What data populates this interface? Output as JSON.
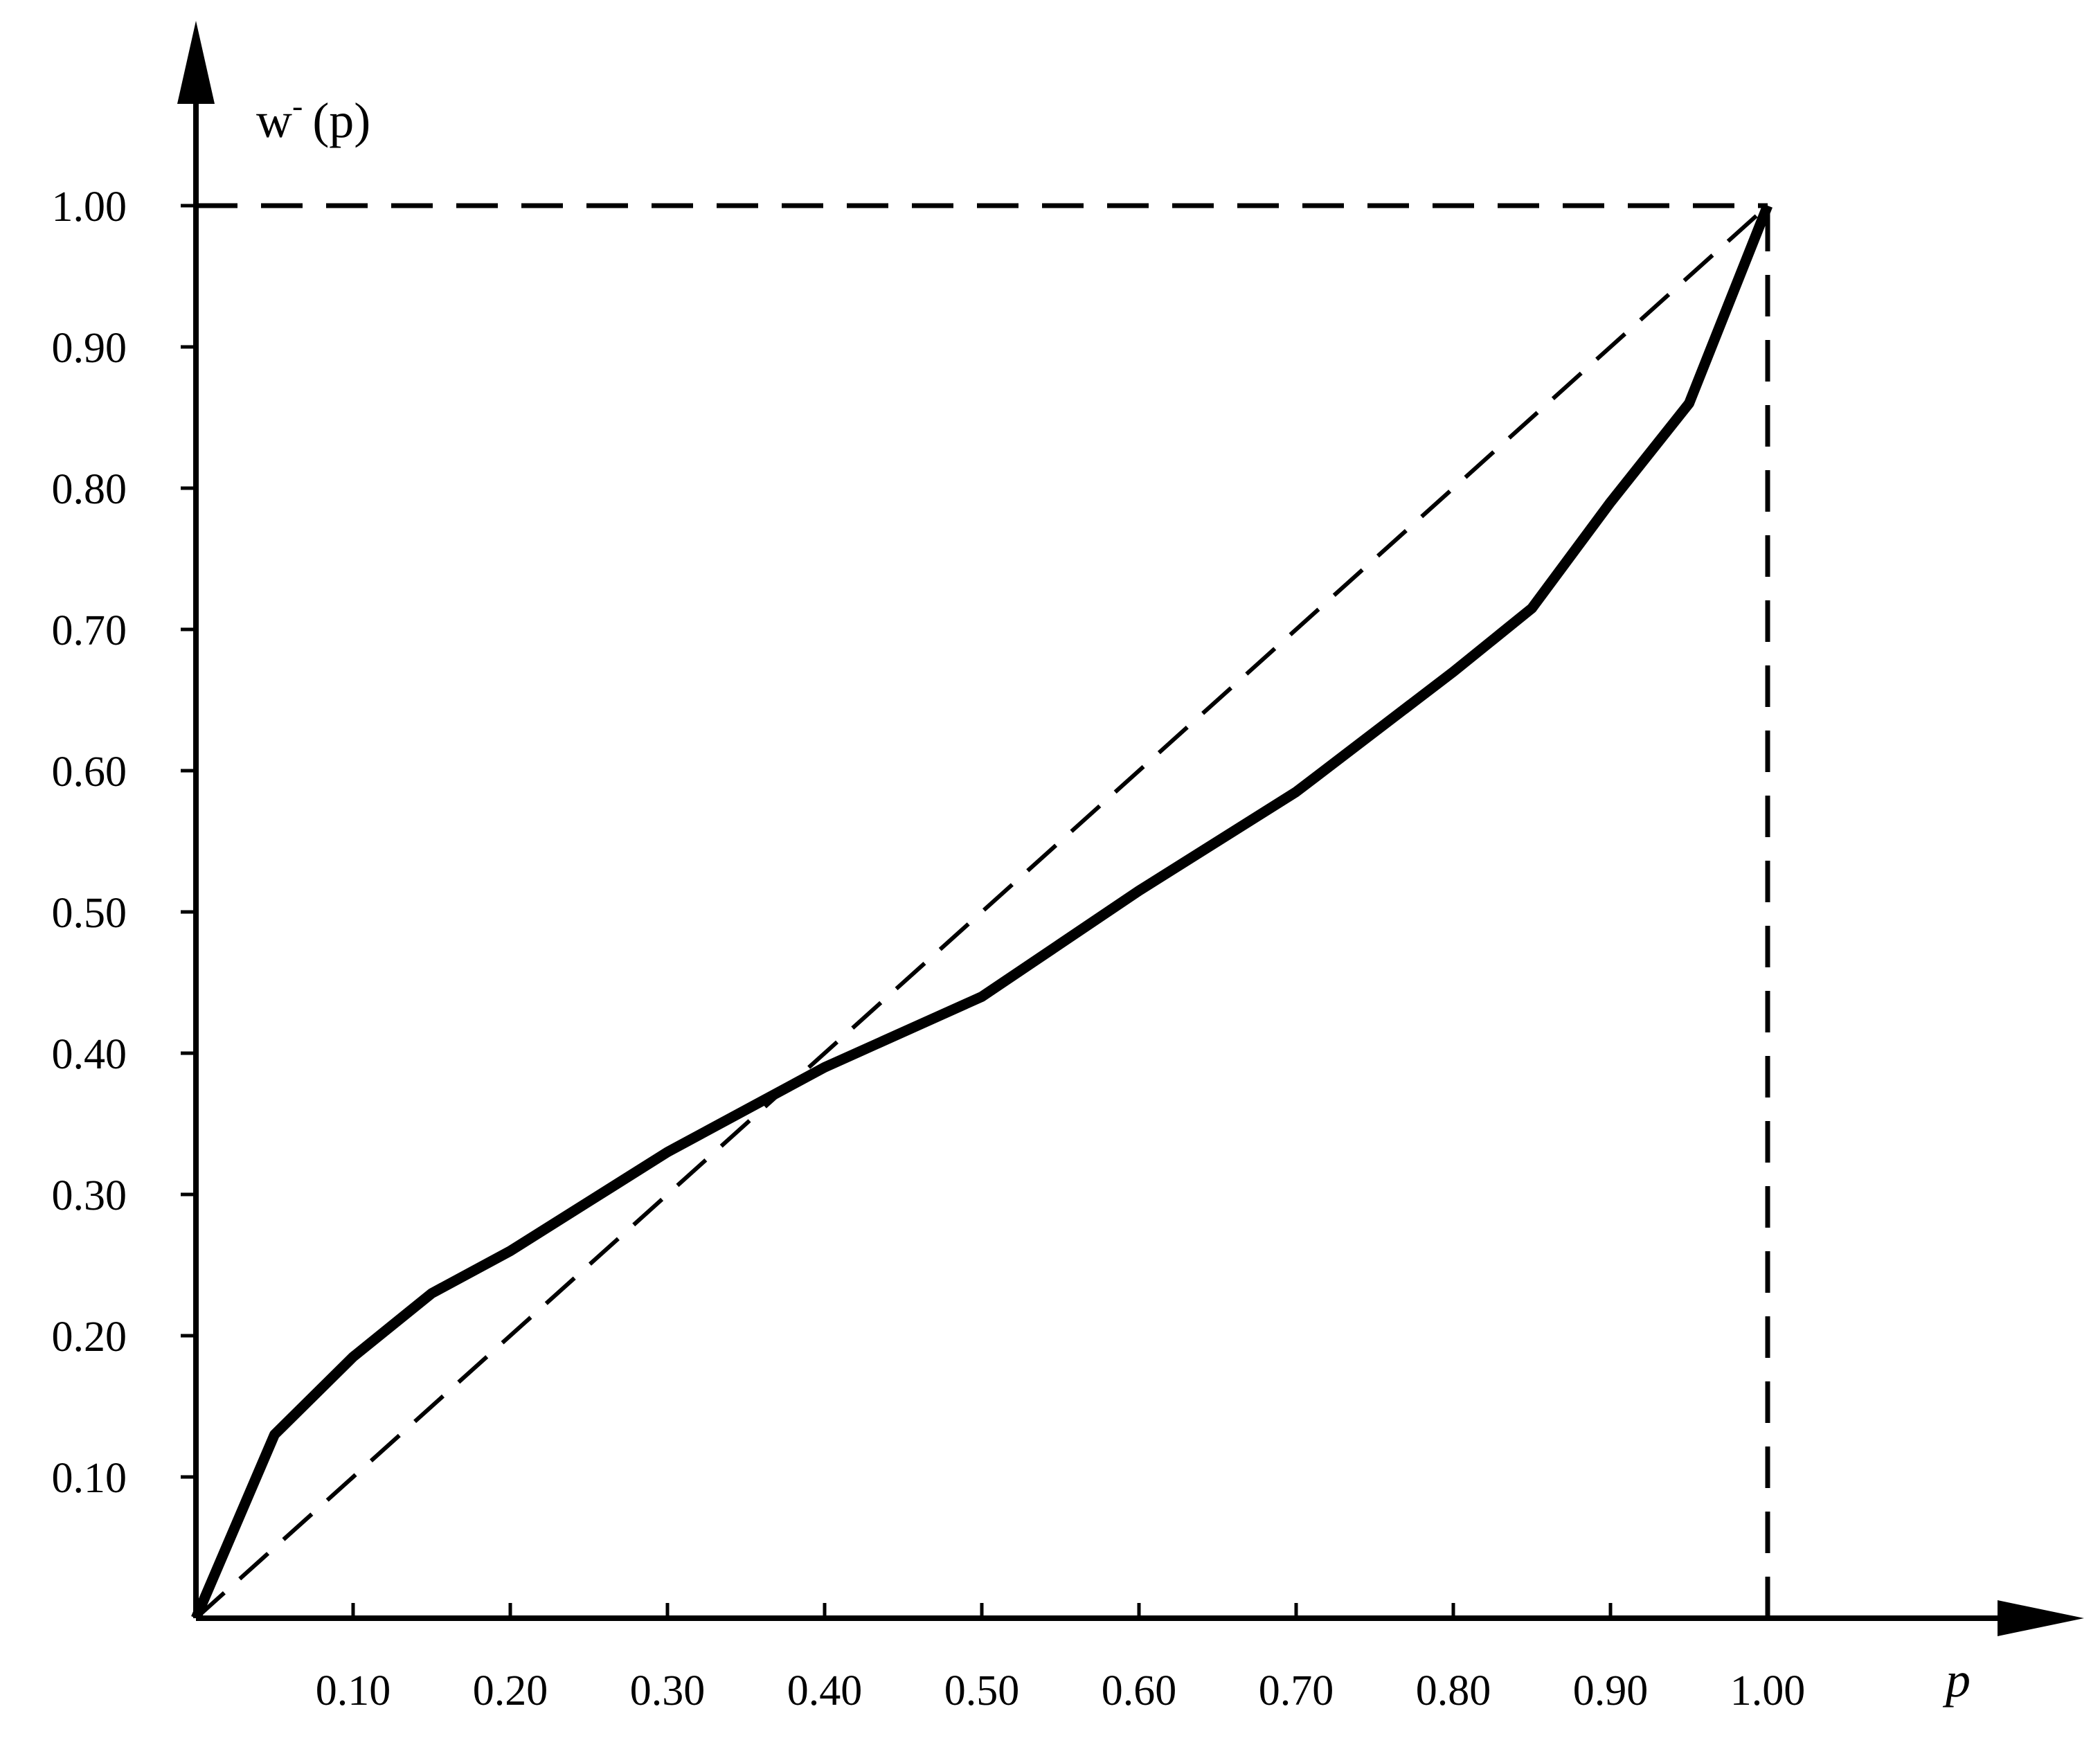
{
  "chart_data": {
    "type": "line",
    "title": "",
    "xlabel": "p",
    "ylabel_base": "w",
    "ylabel_superscript": "-",
    "ylabel_arg": "(p)",
    "xlim": [
      0,
      1.15
    ],
    "ylim": [
      0,
      1.0
    ],
    "grid": false,
    "x_ticks": [
      {
        "value": 0.1,
        "label": "0.10"
      },
      {
        "value": 0.2,
        "label": "0.20"
      },
      {
        "value": 0.3,
        "label": "0.30"
      },
      {
        "value": 0.4,
        "label": "0.40"
      },
      {
        "value": 0.5,
        "label": "0.50"
      },
      {
        "value": 0.6,
        "label": "0.60"
      },
      {
        "value": 0.7,
        "label": "0.70"
      },
      {
        "value": 0.8,
        "label": "0.80"
      },
      {
        "value": 0.9,
        "label": "0.90"
      },
      {
        "value": 1.0,
        "label": "1.00"
      }
    ],
    "y_ticks": [
      {
        "value": 0.1,
        "label": "0.10"
      },
      {
        "value": 0.2,
        "label": "0.20"
      },
      {
        "value": 0.3,
        "label": "0.30"
      },
      {
        "value": 0.4,
        "label": "0.40"
      },
      {
        "value": 0.5,
        "label": "0.50"
      },
      {
        "value": 0.6,
        "label": "0.60"
      },
      {
        "value": 0.7,
        "label": "0.70"
      },
      {
        "value": 0.8,
        "label": "0.80"
      },
      {
        "value": 0.9,
        "label": "0.90"
      },
      {
        "value": 1.0,
        "label": "1.00"
      }
    ],
    "series": [
      {
        "style": "solid",
        "x": [
          0,
          0.05,
          0.1,
          0.15,
          0.2,
          0.25,
          0.3,
          0.4,
          0.5,
          0.6,
          0.7,
          0.8,
          0.85,
          0.9,
          0.95,
          1.0
        ],
        "y": [
          0,
          0.13,
          0.185,
          0.23,
          0.26,
          0.295,
          0.33,
          0.39,
          0.44,
          0.515,
          0.585,
          0.67,
          0.715,
          0.79,
          0.86,
          1.0
        ]
      },
      {
        "style": "dashed",
        "x": [
          0,
          1.0
        ],
        "y": [
          0,
          1.0
        ]
      }
    ],
    "reference_lines": [
      {
        "style": "dashed",
        "x": [
          0,
          1.0
        ],
        "y": [
          1.0,
          1.0
        ]
      },
      {
        "style": "dashed",
        "x": [
          1.0,
          1.0
        ],
        "y": [
          0,
          1.0
        ]
      }
    ],
    "colors": {
      "line": "#000000",
      "background": "#ffffff"
    }
  }
}
